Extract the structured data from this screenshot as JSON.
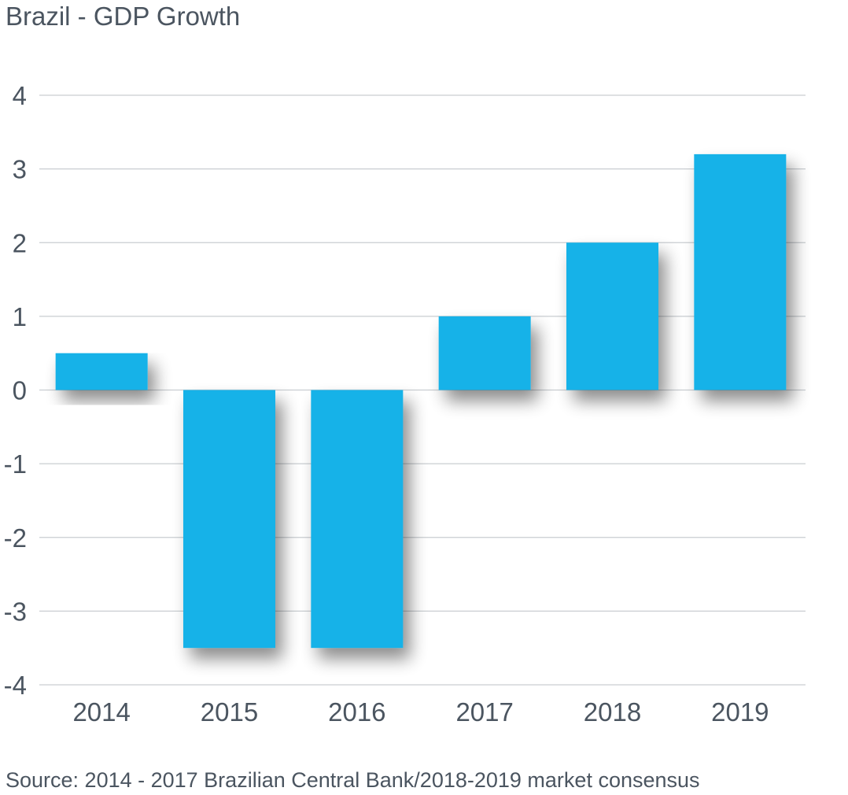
{
  "chart_data": {
    "type": "bar",
    "title": "Brazil - GDP Growth",
    "categories": [
      "2014",
      "2015",
      "2016",
      "2017",
      "2018",
      "2019"
    ],
    "values": [
      0.5,
      -3.5,
      -3.5,
      1.0,
      2.0,
      3.2
    ],
    "ylim": [
      -4,
      4
    ],
    "yticks": [
      "4",
      "3",
      "2",
      "1",
      "0",
      "-1",
      "-2",
      "-3",
      "-4"
    ],
    "xlabel": "",
    "ylabel": "",
    "grid": true,
    "legend": "none",
    "bar_color": "#16b2e8",
    "source": "Source: 2014 - 2017 Brazilian Central Bank/2018-2019 market consensus"
  }
}
